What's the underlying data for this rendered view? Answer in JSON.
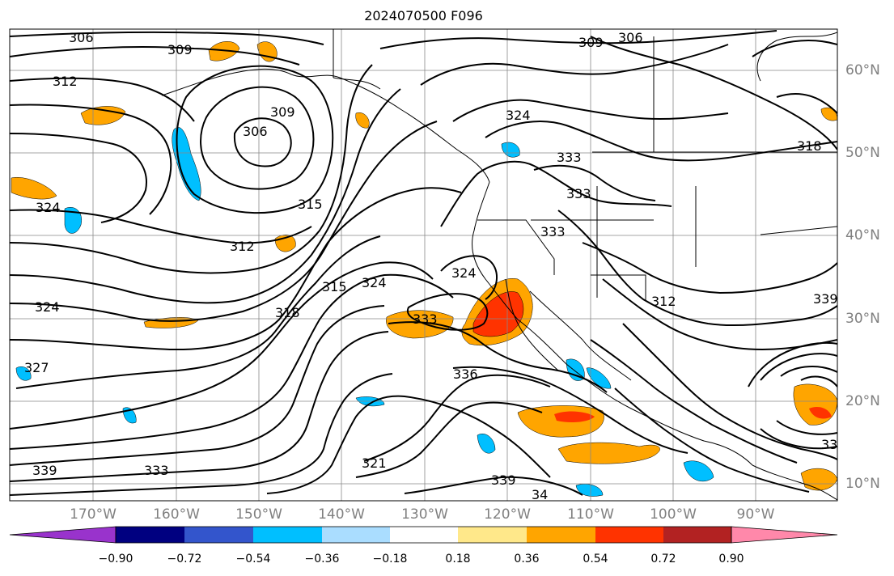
{
  "title": "2024070500 F096",
  "latitude_labels": [
    "60°N",
    "50°N",
    "40°N",
    "30°N",
    "20°N",
    "10°N"
  ],
  "longitude_labels": [
    "170°W",
    "160°W",
    "150°W",
    "140°W",
    "130°W",
    "120°W",
    "110°W",
    "100°W",
    "90°W"
  ],
  "contour_labels": [
    "306",
    "309",
    "309",
    "306",
    "312",
    "309",
    "306",
    "324",
    "333",
    "333",
    "318",
    "324",
    "312",
    "315",
    "315",
    "324",
    "333",
    "324",
    "324",
    "318",
    "333",
    "327",
    "336",
    "339",
    "333",
    "321",
    "339",
    "34",
    "312",
    "339",
    "33"
  ],
  "colorbar": {
    "tick_labels": [
      "−0.90",
      "−0.72",
      "−0.54",
      "−0.36",
      "−0.18",
      "0.18",
      "0.36",
      "0.54",
      "0.72",
      "0.90"
    ],
    "colors": [
      "#9933cc",
      "#000080",
      "#3355cc",
      "#00bfff",
      "#aaddff",
      "#ffffff",
      "#ffe88a",
      "#ffa500",
      "#ff3300",
      "#b22222",
      "#ff88aa"
    ],
    "extend": "both"
  }
}
